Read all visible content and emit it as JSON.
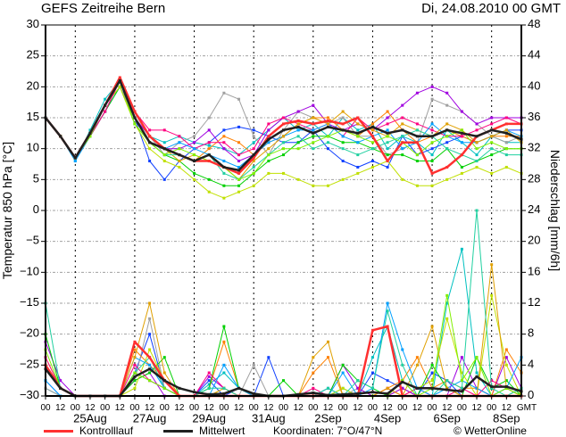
{
  "header": {
    "title": "GEFS Zeitreihe Bern",
    "run": "Di, 24.08.2010 00 GMT"
  },
  "legend": {
    "control": "Kontrolllauf",
    "mean": "Mittelwert",
    "coords": "Koordinaten: 7°O/47°N",
    "copyright": "© WetterOnline"
  },
  "colors": {
    "control": "#ff3030",
    "mean": "#202020",
    "grid": "#a0a0a0"
  },
  "chart_data": {
    "type": "line",
    "title": "GEFS Zeitreihe Bern",
    "ylabel": "Temperatur 850 hPa [°C]",
    "y2label": "Niederschlag [mm/6h]",
    "ylim": [
      -30,
      30
    ],
    "y2lim": [
      0,
      48
    ],
    "yticks": [
      30,
      25,
      20,
      15,
      10,
      5,
      0,
      -5,
      -10,
      -15,
      -20,
      -25,
      -30
    ],
    "y2ticks": [
      48,
      44,
      40,
      36,
      32,
      28,
      24,
      20,
      16,
      12,
      8,
      4,
      0
    ],
    "x_step_hours": 12,
    "x_start": "24.08.2010 00 GMT",
    "xticks": [
      "00",
      "12",
      "00",
      "12",
      "00",
      "12",
      "00",
      "12",
      "00",
      "12",
      "00",
      "12",
      "00",
      "12",
      "00",
      "12",
      "00",
      "12",
      "00",
      "12",
      "00",
      "12",
      "00",
      "12",
      "00",
      "12",
      "00",
      "12",
      "00",
      "12",
      "00",
      "12",
      "GMT"
    ],
    "date_labels": [
      {
        "label": "25Aug",
        "index": 3
      },
      {
        "label": "27Aug",
        "index": 7
      },
      {
        "label": "29Aug",
        "index": 11
      },
      {
        "label": "31Aug",
        "index": 15
      },
      {
        "label": "2Sep",
        "index": 19
      },
      {
        "label": "4Sep",
        "index": 23
      },
      {
        "label": "6Sep",
        "index": 27
      },
      {
        "label": "8Sep",
        "index": 31
      }
    ],
    "mean": {
      "name": "Mittelwert",
      "temp": [
        15,
        12,
        8.5,
        12.5,
        17,
        21,
        15,
        11,
        10,
        9,
        8,
        9,
        7,
        6.5,
        9,
        11.5,
        13,
        13.5,
        12.5,
        13.5,
        13,
        12.5,
        13.5,
        12.5,
        13,
        12,
        12,
        13,
        12.5,
        12,
        13,
        12.5,
        11.5
      ],
      "precip": [
        3.5,
        1,
        0,
        0,
        0,
        0,
        2.5,
        3.5,
        2,
        1,
        0.5,
        0.2,
        0.3,
        1,
        0.3,
        0,
        0,
        0.2,
        0.4,
        0.1,
        0.2,
        0.3,
        0.5,
        0.3,
        1.8,
        1,
        1,
        0.8,
        0.6,
        2.5,
        1.2,
        1.2,
        0.6
      ]
    },
    "control": {
      "name": "Kontrolllauf",
      "temp": [
        15,
        12,
        8.5,
        12.5,
        17,
        21.5,
        16,
        12,
        10,
        9,
        8,
        8,
        7,
        6,
        8.5,
        12,
        14,
        14.5,
        14,
        14.5,
        14,
        15,
        12,
        8,
        11,
        11,
        6,
        7,
        9,
        12,
        13,
        14,
        14
      ],
      "precip": [
        4,
        1,
        0,
        0,
        0,
        0,
        7,
        5,
        2,
        0,
        0,
        0,
        0,
        0,
        0,
        0,
        0,
        0,
        0,
        0,
        0,
        0,
        8.5,
        9,
        0,
        0,
        0,
        0,
        0,
        0,
        0,
        0,
        0
      ]
    },
    "members": [
      {
        "color": "#00c0c0",
        "temp": [
          15,
          12,
          8,
          13,
          18,
          21,
          15,
          12,
          11,
          12,
          11,
          10.5,
          10,
          9,
          11,
          13,
          15,
          13,
          14,
          12,
          15,
          13,
          14,
          10,
          12,
          11,
          9,
          13,
          11,
          9,
          12,
          11,
          11
        ],
        "precip": [
          1,
          0,
          0,
          0,
          0,
          0,
          3,
          2,
          1,
          0,
          0,
          1.5,
          3,
          1,
          0,
          0,
          0,
          0,
          0,
          0,
          1,
          0,
          5,
          9,
          2,
          0,
          0,
          12,
          19,
          3,
          0,
          0,
          0
        ]
      },
      {
        "color": "#1040ff",
        "temp": [
          15,
          12,
          8.5,
          12,
          16,
          20,
          15,
          8,
          5,
          8,
          10,
          11,
          13,
          13.5,
          13,
          12,
          11,
          11,
          13,
          10,
          8,
          7,
          8,
          7,
          12,
          9,
          10,
          11,
          12,
          11,
          12,
          13,
          13
        ],
        "precip": [
          2,
          0,
          0,
          0,
          0,
          0,
          3,
          8,
          1,
          0,
          0,
          2,
          0,
          1,
          0,
          5,
          0,
          0,
          0,
          1,
          0,
          0,
          3,
          2,
          1,
          0,
          3,
          2,
          0,
          0,
          0,
          1,
          0
        ]
      },
      {
        "color": "#a0a0a0",
        "temp": [
          15,
          12,
          8.5,
          12,
          17,
          20,
          15,
          12,
          9,
          11,
          12,
          15,
          19,
          18,
          12,
          9,
          13,
          16,
          15,
          14,
          15,
          12,
          12,
          9,
          10,
          11,
          18,
          17,
          16,
          14,
          12,
          11,
          12
        ],
        "precip": [
          1,
          0,
          0,
          0,
          0,
          0,
          2,
          10,
          1,
          0,
          0,
          0,
          0,
          0,
          4,
          0,
          0,
          0,
          0,
          0,
          0,
          1,
          0,
          0,
          1,
          0,
          0,
          0,
          0,
          0,
          0,
          0,
          1
        ]
      },
      {
        "color": "#a000e0",
        "temp": [
          15,
          12,
          8.5,
          12,
          16,
          21,
          15,
          12,
          10,
          10,
          11,
          13,
          10,
          8,
          9,
          13,
          15,
          16,
          17,
          14,
          13,
          14,
          13,
          15,
          17,
          19,
          20,
          19,
          16,
          14,
          15,
          15,
          15
        ],
        "precip": [
          7,
          2,
          0,
          0,
          0,
          0,
          2,
          3,
          0,
          0,
          0,
          2.5,
          1,
          0,
          0,
          0,
          0,
          0,
          0,
          0,
          4,
          1,
          0,
          0,
          1,
          0,
          0,
          0,
          5,
          1,
          0,
          5,
          1
        ]
      },
      {
        "color": "#ff8000",
        "temp": [
          15,
          12,
          8.5,
          12,
          17,
          21,
          16,
          12,
          10,
          9,
          8,
          10,
          12,
          11,
          9,
          11,
          12,
          14,
          15,
          15,
          13,
          12,
          14,
          16,
          13,
          11,
          12,
          13,
          12,
          11,
          12,
          12,
          12
        ],
        "precip": [
          4,
          1,
          0,
          0,
          0,
          0,
          6,
          4,
          2,
          0,
          0,
          1,
          7,
          1,
          0,
          0,
          0,
          0,
          3,
          5,
          0,
          0,
          0,
          1,
          2,
          5,
          1,
          2,
          1,
          1,
          0,
          6,
          3
        ]
      },
      {
        "color": "#00d000",
        "temp": [
          15,
          12,
          8.5,
          12,
          16,
          20,
          14,
          11,
          9,
          8,
          6,
          5,
          4,
          4,
          6,
          8,
          9,
          11,
          12,
          12,
          11,
          11,
          10,
          9,
          9,
          8,
          8,
          10,
          7,
          8,
          9,
          10,
          10
        ],
        "precip": [
          8,
          1,
          0,
          0,
          0,
          0,
          2,
          3,
          5,
          0,
          0,
          1,
          9,
          1,
          0,
          0,
          2,
          0,
          0,
          0,
          4,
          2,
          1,
          0,
          0,
          0,
          4,
          1,
          0,
          5,
          1,
          2,
          0
        ]
      },
      {
        "color": "#c0e000",
        "temp": [
          15,
          12,
          8.5,
          12,
          17,
          20,
          14,
          10,
          8,
          7,
          5,
          3,
          2,
          3,
          4,
          6,
          6,
          5,
          4,
          4,
          5,
          6,
          7,
          8,
          5,
          4,
          4,
          5,
          6,
          7,
          6,
          7,
          6
        ],
        "precip": [
          5,
          1,
          0,
          0,
          0,
          0,
          1,
          6,
          2,
          0,
          0,
          0,
          1,
          0,
          0,
          0,
          0,
          0,
          0,
          0,
          1,
          0,
          0,
          0,
          0,
          1,
          2,
          10,
          3,
          0,
          13,
          4,
          0
        ]
      },
      {
        "color": "#ff0080",
        "temp": [
          15,
          12,
          8.5,
          12,
          16,
          21,
          16,
          13,
          13,
          12,
          10,
          11,
          11,
          9,
          10,
          14,
          15,
          14,
          13,
          14,
          12,
          15,
          13,
          14,
          15,
          14,
          13,
          12,
          12,
          13,
          14,
          15,
          14
        ],
        "precip": [
          5,
          1,
          0,
          0,
          0,
          0,
          4,
          2,
          1,
          0,
          0,
          3,
          1,
          0,
          0,
          0,
          0,
          0,
          1,
          0,
          0,
          0,
          0,
          1,
          0,
          1,
          0,
          0,
          1,
          0,
          2,
          1,
          0
        ]
      },
      {
        "color": "#00a0ff",
        "temp": [
          15,
          12,
          8,
          12,
          17,
          21,
          15,
          11,
          10,
          11,
          10,
          9,
          8,
          7,
          9,
          11,
          12,
          13,
          13,
          14,
          12,
          11,
          12,
          13,
          10,
          11,
          14,
          12,
          11,
          11,
          12,
          13,
          12
        ],
        "precip": [
          2,
          0,
          0,
          0,
          0,
          0,
          5,
          4,
          1,
          0,
          0,
          0,
          4,
          1,
          0,
          0,
          0,
          0,
          0,
          0,
          3,
          0,
          1,
          12,
          6,
          1,
          0,
          1,
          2,
          1,
          0,
          1,
          5
        ]
      },
      {
        "color": "#e0a000",
        "temp": [
          15,
          12,
          8.5,
          12,
          17,
          21,
          15,
          11,
          10,
          8,
          9,
          8,
          7,
          5,
          8,
          10,
          12,
          14,
          15,
          14,
          16,
          14,
          13,
          12,
          14,
          13,
          12,
          14,
          13,
          11,
          12,
          13,
          11
        ],
        "precip": [
          4,
          1,
          0,
          0,
          0,
          0,
          5,
          12,
          3,
          0,
          0,
          0,
          1,
          0,
          0,
          0,
          0,
          0,
          5,
          7,
          0,
          0,
          0,
          1,
          0,
          4,
          9,
          1,
          0,
          0,
          17,
          1,
          0
        ]
      },
      {
        "color": "#20d0a0",
        "temp": [
          15,
          12,
          8.5,
          12,
          17,
          21,
          14,
          11,
          9,
          9,
          8,
          9,
          6,
          5,
          7,
          9,
          11,
          12,
          10,
          11,
          10,
          9,
          10,
          11,
          12,
          13,
          12,
          10,
          9,
          8,
          10,
          9,
          9
        ],
        "precip": [
          12,
          1,
          0,
          0,
          0,
          0,
          3,
          5,
          1,
          0,
          0,
          1,
          1,
          0,
          0,
          0,
          0,
          0,
          0,
          1,
          0,
          2,
          1,
          11,
          4,
          0,
          0,
          2,
          1,
          24,
          1,
          0,
          1
        ]
      },
      {
        "color": "#80f000",
        "temp": [
          15,
          12,
          8.5,
          12,
          17,
          21,
          14,
          11,
          9,
          10,
          9,
          8,
          7,
          5,
          6,
          9,
          10,
          10,
          11,
          12,
          13,
          12,
          11,
          12,
          11,
          9,
          11,
          12,
          13,
          10,
          11,
          10,
          10
        ],
        "precip": [
          6,
          1,
          0,
          0,
          0,
          0,
          3,
          2,
          1,
          0,
          0,
          0,
          0,
          0,
          0,
          0,
          0,
          0,
          0,
          0,
          0,
          0,
          0,
          0,
          2,
          0,
          1,
          13,
          2,
          5,
          0,
          1,
          0
        ]
      }
    ]
  }
}
